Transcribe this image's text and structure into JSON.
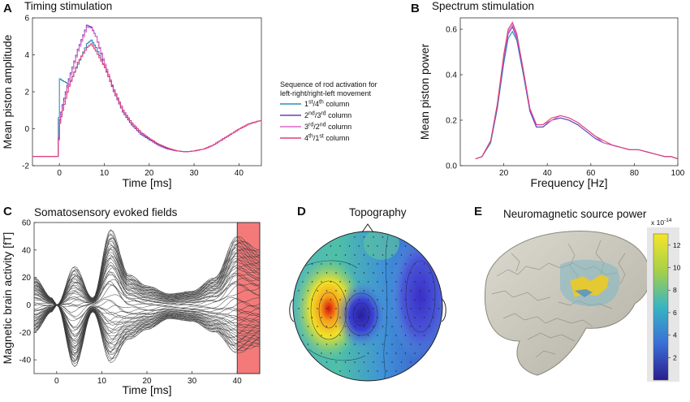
{
  "panels": {
    "A": {
      "letter": "A",
      "title": "Timing stimulation",
      "xlabel": "Time [ms]",
      "ylabel": "Mean piston amplitude"
    },
    "B": {
      "letter": "B",
      "title": "Spectrum stimulation",
      "xlabel": "Frequency [Hz]",
      "ylabel": "Mean piston power"
    },
    "C": {
      "letter": "C",
      "title": "Somatosensory evoked fields",
      "xlabel": "Time [ms]",
      "ylabel": "Magnetic brain activity [fT]"
    },
    "D": {
      "letter": "D",
      "title": "Topography"
    },
    "E": {
      "letter": "E",
      "title": "Neuromagnetic source power",
      "colorbar_exponent": "x 10",
      "colorbar_power": "-14",
      "colorbar_ticks": [
        "12",
        "10",
        "8",
        "6",
        "4",
        "2"
      ]
    }
  },
  "legend": {
    "title_line1": "Sequence of rod activation for",
    "title_line2": "left-right/right-left movement",
    "entries": [
      {
        "base": "1",
        "sup": "st",
        "sep": "/4",
        "sup2": "th",
        "tail": " column",
        "color": "#2a8fb8"
      },
      {
        "base": "2",
        "sup": "nd",
        "sep": "/3",
        "sup2": "rd",
        "tail": " column",
        "color": "#6a3fc0"
      },
      {
        "base": "3",
        "sup": "rd",
        "sep": "/2",
        "sup2": "nd",
        "tail": " column",
        "color": "#e066c6"
      },
      {
        "base": "4",
        "sup": "th",
        "sep": "/1",
        "sup2": "st",
        "tail": " column",
        "color": "#e0407a"
      }
    ]
  },
  "chart_data": [
    {
      "type": "line",
      "title": "Timing stimulation",
      "xlabel": "Time [ms]",
      "ylabel": "Mean piston amplitude",
      "xlim": [
        -6,
        45
      ],
      "ylim": [
        -2,
        6
      ],
      "xticks": [
        "0",
        "10",
        "20",
        "30",
        "40"
      ],
      "yticks": [
        "-2",
        "0",
        "2",
        "4",
        "6"
      ],
      "series": [
        {
          "name": "1st/4th column",
          "color": "#2a8fb8",
          "x": [
            -6,
            -0.5,
            0,
            0.6,
            2,
            4,
            6,
            7,
            8,
            10,
            12,
            14,
            16,
            18,
            20,
            22,
            24,
            26,
            28,
            30,
            32,
            34,
            36,
            38,
            40,
            42,
            44,
            45
          ],
          "y": [
            -1.5,
            -1.5,
            2.7,
            2.6,
            2.4,
            3.5,
            4.6,
            4.8,
            4.4,
            3.3,
            2.1,
            1.0,
            0.3,
            -0.2,
            -0.6,
            -0.9,
            -1.1,
            -1.2,
            -1.25,
            -1.2,
            -1.1,
            -0.9,
            -0.6,
            -0.3,
            0.0,
            0.25,
            0.4,
            0.45
          ]
        },
        {
          "name": "2nd/3rd column",
          "color": "#6a3fc0",
          "x": [
            -6,
            -0.5,
            0,
            0.6,
            2,
            4,
            6,
            7,
            8,
            10,
            12,
            14,
            16,
            18,
            20,
            22,
            24,
            26,
            28,
            30,
            32,
            34,
            36,
            38,
            40,
            42,
            44,
            45
          ],
          "y": [
            -1.5,
            -1.5,
            0.5,
            1.3,
            2.7,
            4.3,
            5.6,
            5.5,
            5.0,
            3.4,
            2.0,
            0.9,
            0.2,
            -0.3,
            -0.6,
            -0.9,
            -1.1,
            -1.2,
            -1.25,
            -1.2,
            -1.1,
            -0.9,
            -0.6,
            -0.3,
            0.0,
            0.25,
            0.4,
            0.45
          ]
        },
        {
          "name": "3rd/2nd column",
          "color": "#e066c6",
          "x": [
            -6,
            -0.5,
            0,
            0.6,
            2,
            4,
            6,
            7,
            8,
            10,
            12,
            14,
            16,
            18,
            20,
            22,
            24,
            26,
            28,
            30,
            32,
            34,
            36,
            38,
            40,
            42,
            44,
            45
          ],
          "y": [
            -1.5,
            -1.5,
            0.4,
            1.1,
            2.6,
            4.2,
            5.5,
            5.45,
            5.0,
            3.5,
            2.1,
            1.0,
            0.3,
            -0.2,
            -0.55,
            -0.85,
            -1.05,
            -1.2,
            -1.25,
            -1.2,
            -1.1,
            -0.9,
            -0.6,
            -0.3,
            0.0,
            0.25,
            0.4,
            0.45
          ]
        },
        {
          "name": "4th/1st column",
          "color": "#e0407a",
          "x": [
            -6,
            -0.5,
            0,
            0.6,
            2,
            4,
            6,
            7,
            8,
            10,
            12,
            14,
            16,
            18,
            20,
            22,
            24,
            26,
            28,
            30,
            32,
            34,
            36,
            38,
            40,
            42,
            44,
            45
          ],
          "y": [
            -1.5,
            -1.5,
            0.3,
            1.0,
            2.3,
            3.6,
            4.4,
            4.6,
            4.2,
            3.3,
            2.1,
            1.0,
            0.3,
            -0.2,
            -0.55,
            -0.85,
            -1.05,
            -1.2,
            -1.25,
            -1.2,
            -1.1,
            -0.9,
            -0.6,
            -0.3,
            0.0,
            0.25,
            0.4,
            0.45
          ]
        }
      ]
    },
    {
      "type": "line",
      "title": "Spectrum stimulation",
      "xlabel": "Frequency [Hz]",
      "ylabel": "Mean piston power",
      "xlim": [
        0,
        100
      ],
      "ylim": [
        0,
        0.65
      ],
      "xticks": [
        "20",
        "40",
        "60",
        "80",
        "100"
      ],
      "yticks": [
        "0.0",
        "0.2",
        "0.4",
        "0.6"
      ],
      "series": [
        {
          "name": "1st/4th column",
          "color": "#2a8fb8",
          "x": [
            7,
            10,
            14,
            17,
            20,
            22,
            24,
            26,
            29,
            32,
            35,
            38,
            42,
            46,
            50,
            54,
            58,
            62,
            66,
            70,
            74,
            78,
            82,
            86,
            90,
            94,
            97,
            100
          ],
          "y": [
            0.03,
            0.04,
            0.1,
            0.25,
            0.45,
            0.56,
            0.59,
            0.55,
            0.4,
            0.24,
            0.17,
            0.17,
            0.2,
            0.21,
            0.2,
            0.18,
            0.15,
            0.12,
            0.1,
            0.09,
            0.08,
            0.07,
            0.07,
            0.06,
            0.05,
            0.04,
            0.04,
            0.03
          ]
        },
        {
          "name": "2nd/3rd column",
          "color": "#6a3fc0",
          "x": [
            7,
            10,
            14,
            17,
            20,
            22,
            24,
            26,
            29,
            32,
            35,
            38,
            42,
            46,
            50,
            54,
            58,
            62,
            66,
            70,
            74,
            78,
            82,
            86,
            90,
            94,
            97,
            100
          ],
          "y": [
            0.03,
            0.04,
            0.11,
            0.26,
            0.47,
            0.58,
            0.61,
            0.56,
            0.41,
            0.24,
            0.17,
            0.17,
            0.2,
            0.21,
            0.2,
            0.18,
            0.15,
            0.12,
            0.1,
            0.09,
            0.08,
            0.07,
            0.07,
            0.06,
            0.05,
            0.04,
            0.04,
            0.03
          ]
        },
        {
          "name": "3rd/2nd column",
          "color": "#e066c6",
          "x": [
            7,
            10,
            14,
            17,
            20,
            22,
            24,
            26,
            29,
            32,
            35,
            38,
            42,
            46,
            50,
            54,
            58,
            62,
            66,
            70,
            74,
            78,
            82,
            86,
            90,
            94,
            97,
            100
          ],
          "y": [
            0.03,
            0.04,
            0.11,
            0.27,
            0.48,
            0.59,
            0.62,
            0.57,
            0.42,
            0.25,
            0.18,
            0.18,
            0.2,
            0.22,
            0.21,
            0.19,
            0.16,
            0.13,
            0.1,
            0.09,
            0.08,
            0.07,
            0.07,
            0.06,
            0.05,
            0.04,
            0.04,
            0.03
          ]
        },
        {
          "name": "4th/1st column",
          "color": "#e0407a",
          "x": [
            7,
            10,
            14,
            17,
            20,
            22,
            24,
            26,
            29,
            32,
            35,
            38,
            42,
            46,
            50,
            54,
            58,
            62,
            66,
            70,
            74,
            78,
            82,
            86,
            90,
            94,
            97,
            100
          ],
          "y": [
            0.03,
            0.04,
            0.11,
            0.27,
            0.49,
            0.6,
            0.63,
            0.58,
            0.42,
            0.25,
            0.18,
            0.18,
            0.21,
            0.22,
            0.21,
            0.19,
            0.16,
            0.13,
            0.11,
            0.09,
            0.08,
            0.07,
            0.07,
            0.06,
            0.05,
            0.04,
            0.04,
            0.03
          ]
        }
      ]
    },
    {
      "type": "line",
      "title": "Somatosensory evoked fields",
      "xlabel": "Time [ms]",
      "ylabel": "Magnetic brain activity [fT]",
      "xlim": [
        -5,
        45
      ],
      "ylim": [
        -50,
        60
      ],
      "xticks": [
        "0",
        "10",
        "20",
        "30",
        "40"
      ],
      "yticks": [
        "-40",
        "-20",
        "0",
        "20",
        "40",
        "60"
      ],
      "highlight_window_ms": [
        40,
        45
      ],
      "highlight_color": "#f47a7a",
      "line_color": "#3a3a3a",
      "envelope": {
        "x": [
          -5,
          -1,
          0,
          4,
          8,
          12,
          16,
          20,
          25,
          30,
          35,
          40,
          45
        ],
        "upper": [
          20,
          5,
          0,
          28,
          5,
          55,
          22,
          14,
          8,
          10,
          20,
          50,
          40
        ],
        "lower": [
          -20,
          -5,
          0,
          -45,
          -5,
          -42,
          -25,
          -18,
          -10,
          -12,
          -20,
          -35,
          -30
        ]
      },
      "trace_count": 60
    }
  ]
}
